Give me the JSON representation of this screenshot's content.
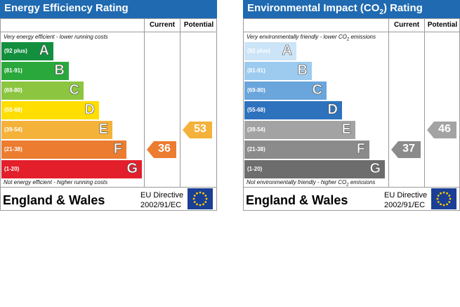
{
  "chart_data": [
    {
      "type": "bar",
      "title": "Energy Efficiency Rating",
      "column_headers": [
        "Current",
        "Potential"
      ],
      "top_note": "Very energy efficient - lower running costs",
      "bottom_note": "Not energy efficient - higher running costs",
      "bands": [
        {
          "letter": "A",
          "range": "(92 plus)",
          "color": "#138f3e"
        },
        {
          "letter": "B",
          "range": "(81-91)",
          "color": "#2aa83b"
        },
        {
          "letter": "C",
          "range": "(69-80)",
          "color": "#8cc540"
        },
        {
          "letter": "D",
          "range": "(55-68)",
          "color": "#ffde00"
        },
        {
          "letter": "E",
          "range": "(39-54)",
          "color": "#f4b23b"
        },
        {
          "letter": "F",
          "range": "(21-38)",
          "color": "#ec7c30"
        },
        {
          "letter": "G",
          "range": "(1-20)",
          "color": "#e31f2c"
        }
      ],
      "current": {
        "value": "36",
        "band": "F",
        "color": "#ec7c30"
      },
      "potential": {
        "value": "53",
        "band": "E",
        "color": "#f4b23b"
      },
      "footer_region": "England & Wales",
      "footer_directive_line1": "EU Directive",
      "footer_directive_line2": "2002/91/EC"
    },
    {
      "type": "bar",
      "title_prefix": "Environmental Impact (CO",
      "title_sub": "2",
      "title_suffix": ") Rating",
      "column_headers": [
        "Current",
        "Potential"
      ],
      "top_note_prefix": "Very environmentally friendly - lower CO",
      "top_note_sub": "2",
      "top_note_suffix": " emissions",
      "bottom_note_prefix": "Not environmentally friendly - higher CO",
      "bottom_note_sub": "2",
      "bottom_note_suffix": " emissions",
      "bands": [
        {
          "letter": "A",
          "range": "(92 plus)",
          "color": "#cce4f7"
        },
        {
          "letter": "B",
          "range": "(81-91)",
          "color": "#9ccbef"
        },
        {
          "letter": "C",
          "range": "(69-80)",
          "color": "#6aa5dc"
        },
        {
          "letter": "D",
          "range": "(55-68)",
          "color": "#2e72bd"
        },
        {
          "letter": "E",
          "range": "(39-54)",
          "color": "#a3a3a3"
        },
        {
          "letter": "F",
          "range": "(21-38)",
          "color": "#8b8b8b"
        },
        {
          "letter": "G",
          "range": "(1-20)",
          "color": "#6d6d6d"
        }
      ],
      "current": {
        "value": "37",
        "band": "F",
        "color": "#8b8b8b"
      },
      "potential": {
        "value": "46",
        "band": "E",
        "color": "#a3a3a3"
      },
      "footer_region": "England & Wales",
      "footer_directive_line1": "EU Directive",
      "footer_directive_line2": "2002/91/EC"
    }
  ],
  "flag_colors": {
    "blue": "#1a3f95",
    "star": "#ffcc00"
  }
}
